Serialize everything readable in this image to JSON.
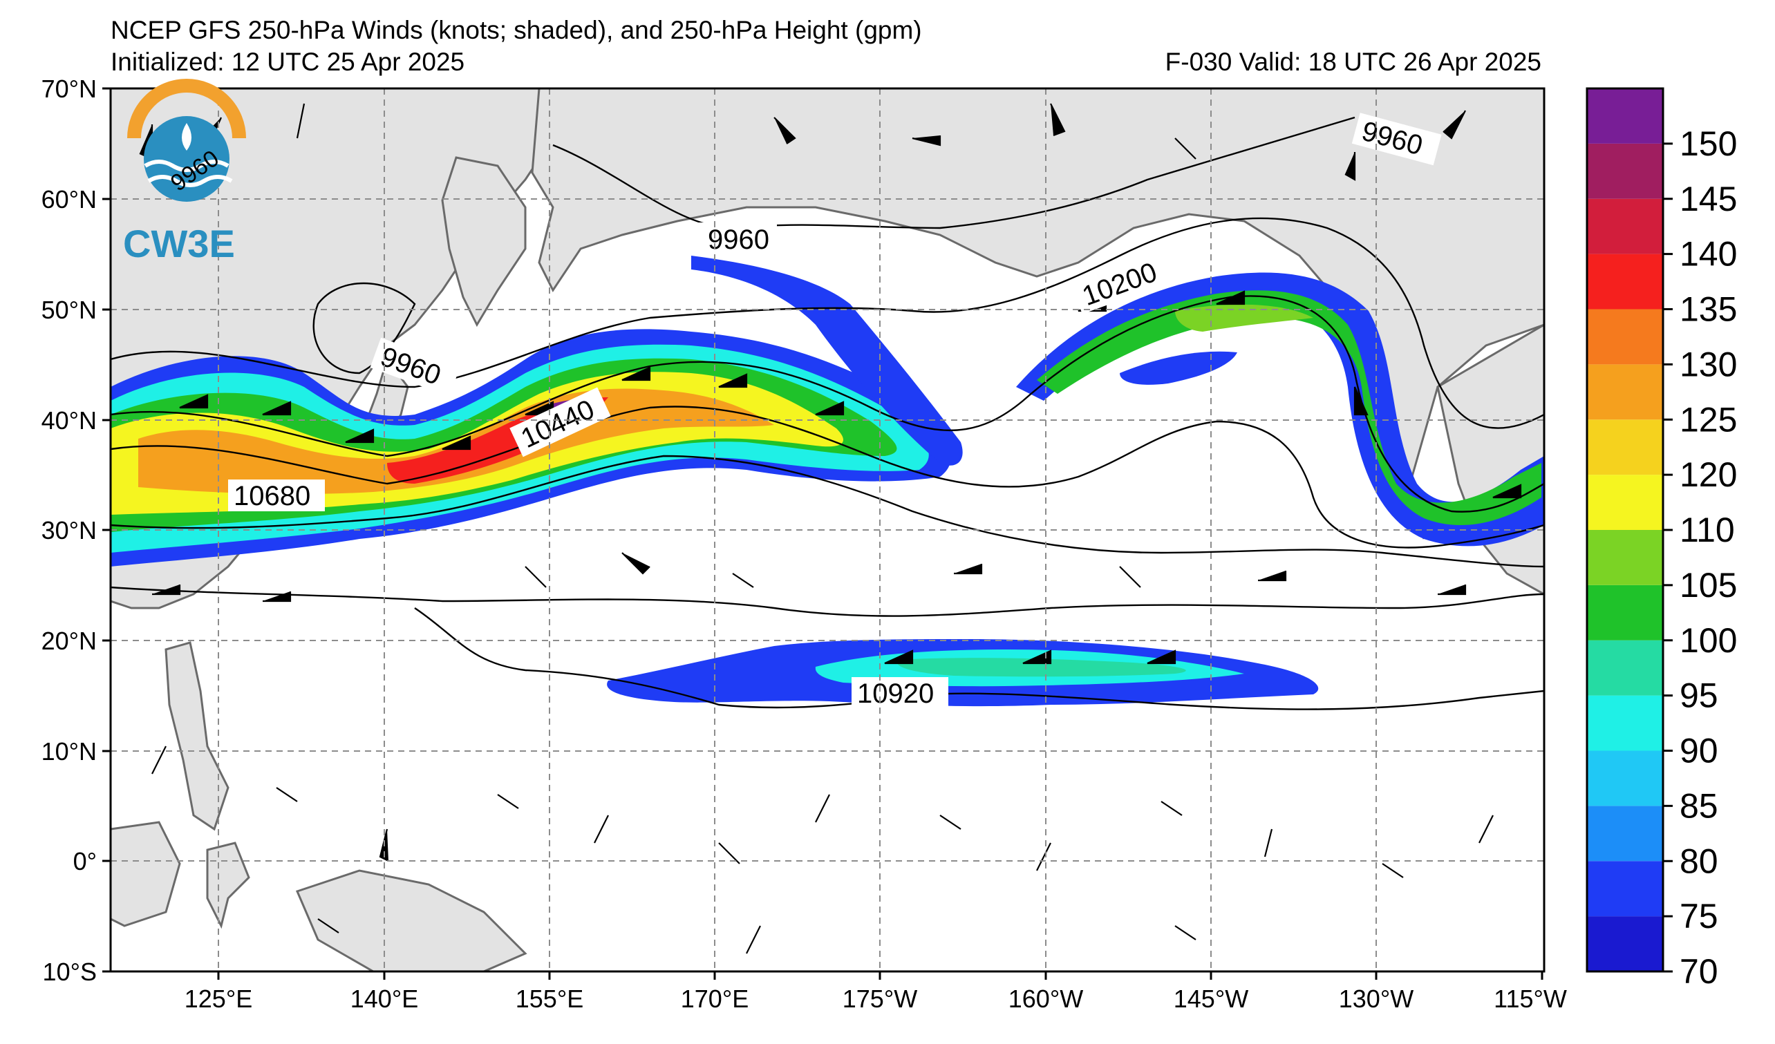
{
  "header": {
    "title": "NCEP GFS 250-hPa Winds (knots; shaded), and 250-hPa Height (gpm)",
    "initialized": "Initialized: 12 UTC 25 Apr 2025",
    "valid": "F-030  Valid: 18 UTC 26 Apr 2025"
  },
  "logo": {
    "text": "CW3E",
    "seal_text": "9960"
  },
  "axes": {
    "lat_labels": [
      "70°N",
      "60°N",
      "50°N",
      "40°N",
      "30°N",
      "20°N",
      "10°N",
      "0°",
      "10°S"
    ],
    "lon_labels": [
      "125°E",
      "140°E",
      "155°E",
      "170°E",
      "175°W",
      "160°W",
      "145°W",
      "130°W",
      "115°W"
    ]
  },
  "colorbar": {
    "ticks": [
      "70",
      "75",
      "80",
      "85",
      "90",
      "95",
      "100",
      "105",
      "110",
      "120",
      "125",
      "130",
      "135",
      "140",
      "145",
      "150"
    ],
    "colors": [
      "#1a1ad0",
      "#1f3cf5",
      "#1c8ef8",
      "#20c8f5",
      "#1ff0e6",
      "#25dba3",
      "#1fc22a",
      "#7bd325",
      "#f5f520",
      "#f5d21e",
      "#f5a01e",
      "#f57a1e",
      "#f5201e",
      "#d21e3c",
      "#a01e60",
      "#781e96"
    ]
  },
  "contour_labels": [
    {
      "id": "c9960a",
      "text": "9960"
    },
    {
      "id": "c9960b",
      "text": "9960"
    },
    {
      "id": "c9960c",
      "text": "9960"
    },
    {
      "id": "c10200",
      "text": "10200"
    },
    {
      "id": "c10440",
      "text": "10440"
    },
    {
      "id": "c10680",
      "text": "10680"
    },
    {
      "id": "c10920",
      "text": "10920"
    }
  ]
}
